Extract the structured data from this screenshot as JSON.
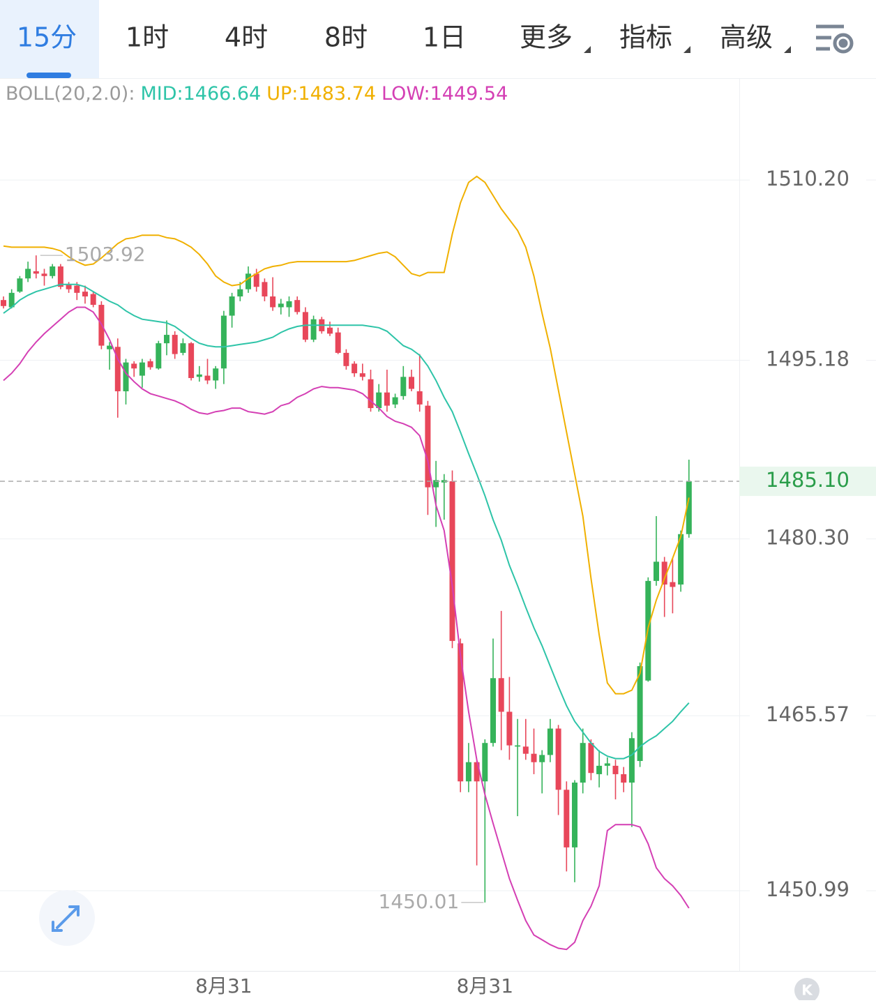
{
  "tabs": [
    {
      "label": "15分"
    },
    {
      "label": "1时"
    },
    {
      "label": "4时"
    },
    {
      "label": "8时"
    },
    {
      "label": "1日"
    },
    {
      "label": "更多",
      "dropdown": true
    },
    {
      "label": "指标",
      "dropdown": true
    },
    {
      "label": "高级",
      "dropdown": true
    }
  ],
  "active_tab": 0,
  "k_button": "K",
  "chart_data": {
    "type": "candlestick",
    "indicator": "BOLL(20,2.0):",
    "up_color": "#35b35a",
    "down_color": "#e8475a",
    "ylim": [
      1444.31,
      1518.63
    ],
    "yticks": [
      {
        "value": 1510.2,
        "label": "1510.20"
      },
      1495.18,
      {
        "value": 1480.3,
        "label": "1480.30"
      },
      1465.57,
      1450.99
    ],
    "grid": true,
    "last_price": {
      "value": 1485.1,
      "label": "1485.10"
    },
    "max_label": 1503.92,
    "min_label": 1450.01,
    "categories": [
      null,
      null,
      null,
      null,
      null,
      null,
      null,
      null,
      null,
      null,
      null,
      null,
      null,
      null,
      null,
      null,
      null,
      null,
      null,
      null,
      null,
      null,
      null,
      null,
      null,
      null,
      null,
      "8月31",
      null,
      null,
      null,
      null,
      null,
      null,
      null,
      null,
      null,
      null,
      null,
      null,
      null,
      null,
      null,
      null,
      null,
      null,
      null,
      null,
      null,
      null,
      null,
      null,
      null,
      null,
      null,
      null,
      null,
      null,
      null,
      "8月31",
      null,
      null,
      null,
      null,
      null,
      null,
      null,
      null,
      null,
      null,
      null,
      null,
      null,
      null,
      null,
      null,
      null,
      null,
      null,
      null,
      null,
      null,
      null,
      null,
      null
    ],
    "open": [
      1500.2,
      1499.6,
      1500.9,
      1502.0,
      1502.6,
      1502.4,
      1502.2,
      1503.0,
      1501.5,
      1501.4,
      1500.9,
      1500.7,
      1499.8,
      1496.1,
      1496.3,
      1492.6,
      1494.9,
      1493.9,
      1495.1,
      1494.5,
      1496.6,
      1497.3,
      1495.8,
      1496.6,
      1493.8,
      1493.9,
      1493.5,
      1494.5,
      1498.9,
      1500.5,
      1501.1,
      1502.4,
      1501.7,
      1500.5,
      1499.6,
      1499.6,
      1500.2,
      1499.2,
      1496.9,
      1498.6,
      1497.9,
      1497.5,
      1495.8,
      1494.9,
      1494.1,
      1493.6,
      1491.2,
      1492.5,
      1491.5,
      1492.2,
      1493.8,
      1492.6,
      1491.4,
      1484.6,
      1485.0,
      1485.1,
      1471.6,
      1460.1,
      1461.7,
      1460.1,
      1463.3,
      1468.7,
      1465.9,
      1463.0,
      1463.0,
      1462.4,
      1461.7,
      1462.3,
      1464.5,
      1459.4,
      1454.6,
      1460.0,
      1463.3,
      1460.7,
      1461.4,
      1461.4,
      1460.7,
      1460.0,
      1461.8,
      1468.5,
      1476.8,
      1478.4,
      1476.7,
      1476.5,
      1480.7
    ],
    "high": [
      1500.5,
      1501.1,
      1502.2,
      1503.4,
      1503.92,
      1502.8,
      1503.2,
      1503.2,
      1501.7,
      1501.7,
      1501.4,
      1500.9,
      1500.1,
      1496.7,
      1497.0,
      1495.3,
      1495.1,
      1495.3,
      1495.3,
      1496.8,
      1498.5,
      1497.6,
      1497.0,
      1496.7,
      1494.7,
      1495.3,
      1494.7,
      1499.3,
      1500.8,
      1501.7,
      1503.0,
      1502.8,
      1502.0,
      1502.1,
      1500.3,
      1500.5,
      1500.5,
      1499.6,
      1498.9,
      1498.8,
      1498.4,
      1497.9,
      1496.1,
      1495.1,
      1494.9,
      1494.4,
      1493.2,
      1494.4,
      1492.4,
      1494.7,
      1494.4,
      1495.7,
      1491.8,
      1486.8,
      1485.7,
      1486.0,
      1472.0,
      1463.3,
      1461.9,
      1463.6,
      1472.0,
      1474.3,
      1468.8,
      1465.3,
      1465.3,
      1464.5,
      1462.7,
      1465.3,
      1464.8,
      1460.1,
      1460.2,
      1464.5,
      1463.6,
      1462.7,
      1462.1,
      1461.9,
      1461.3,
      1464.2,
      1470.0,
      1477.1,
      1482.2,
      1478.8,
      1478.7,
      1481.0,
      1486.9
    ],
    "low": [
      1499.5,
      1499.5,
      1500.8,
      1501.7,
      1502.0,
      1501.4,
      1502.0,
      1501.1,
      1500.8,
      1500.2,
      1499.9,
      1499.6,
      1496.1,
      1494.4,
      1490.4,
      1491.5,
      1493.8,
      1492.9,
      1494.4,
      1494.4,
      1495.6,
      1495.3,
      1495.6,
      1493.5,
      1493.4,
      1493.2,
      1492.8,
      1493.2,
      1497.9,
      1500.1,
      1500.8,
      1500.9,
      1500.1,
      1499.3,
      1499.0,
      1498.8,
      1499.0,
      1496.7,
      1496.7,
      1497.4,
      1497.2,
      1495.7,
      1494.4,
      1493.8,
      1493.5,
      1490.9,
      1490.9,
      1490.9,
      1491.2,
      1491.9,
      1492.6,
      1490.9,
      1482.3,
      1481.3,
      1481.9,
      1471.2,
      1459.2,
      1459.2,
      1453.1,
      1450.01,
      1463.0,
      1462.7,
      1461.9,
      1457.2,
      1461.9,
      1460.7,
      1459.1,
      1461.7,
      1457.3,
      1452.6,
      1451.7,
      1459.1,
      1460.2,
      1459.6,
      1460.6,
      1458.6,
      1459.2,
      1456.3,
      1461.3,
      1468.4,
      1476.4,
      1473.8,
      1474.1,
      1475.9,
      1480.4
    ],
    "close": [
      1499.7,
      1500.8,
      1502.0,
      1502.8,
      1502.4,
      1502.2,
      1503.0,
      1501.3,
      1501.1,
      1500.8,
      1500.5,
      1499.8,
      1496.4,
      1496.4,
      1492.6,
      1495.0,
      1494.5,
      1495.0,
      1494.6,
      1496.6,
      1497.3,
      1495.7,
      1496.6,
      1493.7,
      1494.0,
      1493.5,
      1494.5,
      1498.9,
      1500.5,
      1501.1,
      1502.4,
      1501.3,
      1500.5,
      1499.6,
      1499.9,
      1500.1,
      1499.2,
      1496.9,
      1498.6,
      1497.6,
      1497.4,
      1495.8,
      1494.7,
      1494.1,
      1493.8,
      1491.2,
      1492.5,
      1491.4,
      1492.1,
      1493.8,
      1492.8,
      1491.5,
      1484.6,
      1485.2,
      1485.2,
      1471.8,
      1460.1,
      1461.7,
      1460.1,
      1463.3,
      1468.7,
      1465.9,
      1463.1,
      1463.1,
      1462.4,
      1461.7,
      1462.3,
      1464.5,
      1459.4,
      1454.6,
      1460.0,
      1463.3,
      1460.8,
      1461.4,
      1461.6,
      1460.7,
      1460.0,
      1463.7,
      1469.7,
      1476.8,
      1478.4,
      1476.5,
      1476.3,
      1480.7,
      1485.1
    ],
    "series": [
      {
        "name": "MID:1466.64",
        "color": "#2ec4a8",
        "values": [
          1499.1,
          1499.6,
          1500.2,
          1500.6,
          1500.9,
          1501.1,
          1501.3,
          1501.5,
          1501.5,
          1501.5,
          1501.3,
          1500.9,
          1500.5,
          1500.1,
          1499.8,
          1499.3,
          1498.9,
          1498.6,
          1498.5,
          1498.4,
          1498.3,
          1498.0,
          1497.5,
          1497.0,
          1496.6,
          1496.4,
          1496.3,
          1496.3,
          1496.4,
          1496.5,
          1496.6,
          1496.7,
          1496.9,
          1497.1,
          1497.5,
          1497.8,
          1498.0,
          1498.1,
          1498.1,
          1498.1,
          1498.1,
          1498.1,
          1498.1,
          1498.1,
          1498.1,
          1498.0,
          1497.9,
          1497.6,
          1497.0,
          1496.4,
          1496.1,
          1495.6,
          1494.7,
          1493.5,
          1492.1,
          1490.9,
          1489.2,
          1487.4,
          1485.7,
          1483.9,
          1481.9,
          1480.2,
          1478.1,
          1476.4,
          1474.6,
          1472.9,
          1471.4,
          1469.7,
          1468.0,
          1466.4,
          1465.1,
          1464.2,
          1463.3,
          1462.6,
          1462.2,
          1462.0,
          1462.0,
          1462.3,
          1463.0,
          1463.5,
          1463.9,
          1464.5,
          1465.1,
          1465.9,
          1466.64
        ]
      },
      {
        "name": "UP:1483.74",
        "color": "#f0b000",
        "values": [
          1504.7,
          1504.6,
          1504.6,
          1504.6,
          1504.6,
          1504.6,
          1504.5,
          1504.3,
          1503.8,
          1503.4,
          1503.1,
          1503.2,
          1503.7,
          1504.3,
          1504.9,
          1505.3,
          1505.4,
          1505.6,
          1505.6,
          1505.6,
          1505.4,
          1505.3,
          1505.0,
          1504.6,
          1504.0,
          1503.2,
          1502.2,
          1501.7,
          1501.4,
          1501.5,
          1502.0,
          1502.4,
          1502.8,
          1503.0,
          1503.1,
          1503.3,
          1503.4,
          1503.4,
          1503.4,
          1503.4,
          1503.4,
          1503.4,
          1503.4,
          1503.5,
          1503.7,
          1503.9,
          1504.1,
          1504.2,
          1503.8,
          1503.1,
          1502.4,
          1502.2,
          1502.5,
          1502.5,
          1502.5,
          1505.7,
          1508.3,
          1510.0,
          1510.5,
          1510.0,
          1508.9,
          1507.8,
          1506.9,
          1506.0,
          1504.6,
          1502.2,
          1499.1,
          1496.2,
          1492.7,
          1489.2,
          1485.7,
          1482.2,
          1477.0,
          1472.3,
          1468.3,
          1467.4,
          1467.4,
          1467.7,
          1469.1,
          1472.9,
          1475.2,
          1477.0,
          1478.7,
          1480.5,
          1483.74
        ]
      },
      {
        "name": "LOW:1449.54",
        "color": "#d43fb4",
        "values": [
          1493.5,
          1494.1,
          1494.9,
          1495.9,
          1496.7,
          1497.4,
          1498.0,
          1498.6,
          1499.2,
          1499.6,
          1499.6,
          1499.2,
          1498.2,
          1496.9,
          1495.3,
          1494.1,
          1493.4,
          1492.8,
          1492.4,
          1492.2,
          1492.0,
          1491.8,
          1491.5,
          1491.1,
          1490.8,
          1490.7,
          1490.9,
          1491.0,
          1491.2,
          1491.2,
          1490.9,
          1490.8,
          1490.7,
          1490.9,
          1491.4,
          1491.6,
          1492.1,
          1492.4,
          1492.8,
          1493.0,
          1492.9,
          1492.9,
          1492.8,
          1492.7,
          1492.4,
          1491.8,
          1491.2,
          1490.5,
          1490.1,
          1489.9,
          1489.6,
          1488.9,
          1486.8,
          1483.1,
          1481.0,
          1476.4,
          1470.6,
          1465.9,
          1461.9,
          1459.0,
          1456.6,
          1454.3,
          1452.0,
          1450.2,
          1448.5,
          1447.3,
          1446.9,
          1446.5,
          1446.2,
          1446.1,
          1446.7,
          1448.5,
          1449.7,
          1451.4,
          1456.0,
          1456.5,
          1456.5,
          1456.5,
          1456.3,
          1454.9,
          1452.9,
          1452.0,
          1451.4,
          1450.6,
          1449.54
        ]
      }
    ]
  }
}
